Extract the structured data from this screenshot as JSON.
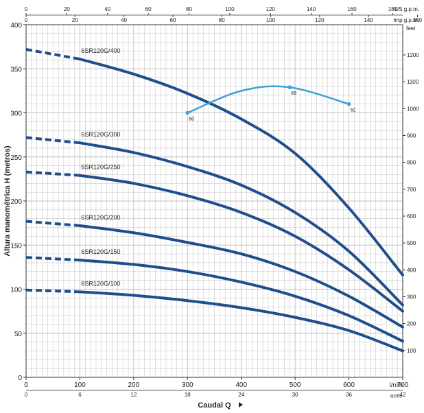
{
  "chart_data": {
    "type": "line",
    "xlabel": "Caudal  Q",
    "ylabel": "Altura manométrica H (metros)",
    "x_unit": "l/min",
    "xlim": [
      0,
      700
    ],
    "ylim": [
      0,
      400
    ],
    "grid": true,
    "axes": {
      "bottom": {
        "unit": "l/min",
        "ticks": [
          "0",
          "100",
          "200",
          "300",
          "400",
          "500",
          "600",
          "700"
        ]
      },
      "bottom2": {
        "unit": "m³/h",
        "ticks": [
          "0",
          "6",
          "12",
          "18",
          "24",
          "30",
          "36",
          "42"
        ]
      },
      "top": {
        "unit": "US g.p.m.",
        "ticks": [
          "0",
          "20",
          "40",
          "60",
          "80",
          "100",
          "120",
          "140",
          "160",
          "180"
        ]
      },
      "top2": {
        "unit": "Imp g.p.m.",
        "ticks": [
          "0",
          "20",
          "40",
          "60",
          "80",
          "100",
          "120",
          "140",
          "160"
        ]
      },
      "left": {
        "ticks": [
          "0",
          "50",
          "100",
          "150",
          "200",
          "250",
          "300",
          "350",
          "400"
        ]
      },
      "right": {
        "unit": "feet",
        "ticks": [
          "100",
          "200",
          "300",
          "400",
          "500",
          "600",
          "700",
          "800",
          "900",
          "1000",
          "1100",
          "1200"
        ]
      }
    },
    "series": [
      {
        "name": "6SR120G/400",
        "dashed": [
          [
            0,
            372
          ],
          [
            100,
            361
          ]
        ],
        "points": [
          [
            100,
            361
          ],
          [
            200,
            344
          ],
          [
            300,
            322
          ],
          [
            400,
            293
          ],
          [
            500,
            254
          ],
          [
            600,
            192
          ],
          [
            700,
            116
          ]
        ]
      },
      {
        "name": "6SR120G/300",
        "dashed": [
          [
            0,
            272
          ],
          [
            100,
            266
          ]
        ],
        "points": [
          [
            100,
            266
          ],
          [
            200,
            255
          ],
          [
            300,
            239
          ],
          [
            400,
            218
          ],
          [
            500,
            187
          ],
          [
            600,
            143
          ],
          [
            700,
            82
          ]
        ]
      },
      {
        "name": "6SR120G/250",
        "dashed": [
          [
            0,
            233
          ],
          [
            100,
            229
          ]
        ],
        "points": [
          [
            100,
            229
          ],
          [
            200,
            220
          ],
          [
            300,
            206
          ],
          [
            400,
            187
          ],
          [
            500,
            160
          ],
          [
            600,
            122
          ],
          [
            700,
            75
          ]
        ]
      },
      {
        "name": "6SR120G/200",
        "dashed": [
          [
            0,
            177
          ],
          [
            100,
            172
          ]
        ],
        "points": [
          [
            100,
            172
          ],
          [
            200,
            164
          ],
          [
            300,
            153
          ],
          [
            400,
            140
          ],
          [
            500,
            120
          ],
          [
            600,
            92
          ],
          [
            700,
            57
          ]
        ]
      },
      {
        "name": "6SR120G/150",
        "dashed": [
          [
            0,
            136
          ],
          [
            100,
            133
          ]
        ],
        "points": [
          [
            100,
            133
          ],
          [
            200,
            128
          ],
          [
            300,
            120
          ],
          [
            400,
            108
          ],
          [
            500,
            92
          ],
          [
            600,
            70
          ],
          [
            700,
            41
          ]
        ]
      },
      {
        "name": "6SR120G/100",
        "dashed": [
          [
            0,
            99
          ],
          [
            100,
            97
          ]
        ],
        "points": [
          [
            100,
            97
          ],
          [
            200,
            93
          ],
          [
            300,
            87
          ],
          [
            400,
            79
          ],
          [
            500,
            68
          ],
          [
            600,
            53
          ],
          [
            700,
            30
          ]
        ]
      }
    ],
    "efficiency": {
      "points": [
        [
          300,
          300
        ],
        [
          400,
          325
        ],
        [
          490,
          329
        ],
        [
          600,
          310
        ]
      ],
      "labels": [
        {
          "text": "60",
          "x": 300,
          "y": 300
        },
        {
          "text": "66",
          "x": 490,
          "y": 329
        },
        {
          "text": "62",
          "x": 600,
          "y": 310
        }
      ]
    },
    "colors": {
      "curve": "#1f4e8c",
      "efficiency": "#3fa0d8",
      "grid": "#bfbfbf",
      "axis": "#333333"
    }
  }
}
